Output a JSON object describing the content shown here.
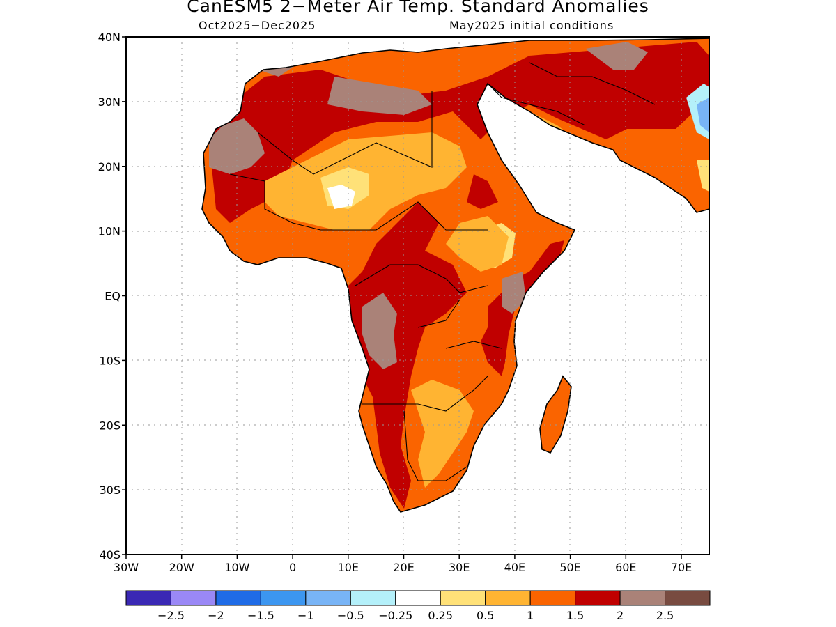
{
  "title": "CanESM5 2−Meter Air Temp. Standard Anomalies",
  "subtitle_left": "Oct2025−Dec2025",
  "subtitle_right": "May2025 initial conditions",
  "lat_ticks": [
    "40N",
    "30N",
    "20N",
    "10N",
    "EQ",
    "10S",
    "20S",
    "30S",
    "40S"
  ],
  "lon_ticks": [
    "30W",
    "20W",
    "10W",
    "0",
    "10E",
    "20E",
    "30E",
    "40E",
    "50E",
    "60E",
    "70E"
  ],
  "colorbar": {
    "colors": [
      "#3a28b4",
      "#9a88f6",
      "#1f6be6",
      "#3c96f0",
      "#78b4f6",
      "#b4f0fa",
      "#ffffff",
      "#ffe178",
      "#ffb432",
      "#fa6400",
      "#c00000",
      "#aa8278",
      "#784b40"
    ],
    "labels": [
      "−2.5",
      "−2",
      "−1.5",
      "−1",
      "−0.5",
      "−0.25",
      "0.25",
      "0.5",
      "1",
      "1.5",
      "2",
      "2.5"
    ]
  },
  "map_layers": [
    {
      "level": "1.5",
      "color": "#fa6400"
    },
    {
      "level": "2",
      "color": "#c00000"
    },
    {
      "level": "0.5",
      "color": "#ffe178"
    },
    {
      "level": "1",
      "color": "#ffb432"
    },
    {
      "level": "2.5",
      "color": "#aa8278"
    },
    {
      "level": "3",
      "color": "#784b40"
    },
    {
      "level": "-0.5",
      "color": "#b4f0fa"
    },
    {
      "level": "-1",
      "color": "#78b4f6"
    }
  ]
}
